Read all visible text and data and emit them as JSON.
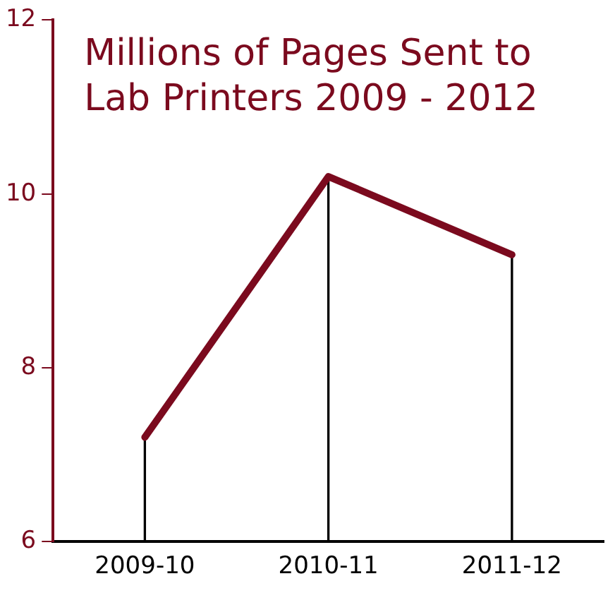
{
  "chart_data": {
    "type": "line",
    "title": "Millions of Pages Sent to Lab Printers 2009 - 2012",
    "categories": [
      "2009-10",
      "2010-11",
      "2011-12"
    ],
    "series": [
      {
        "color": "#7b0a1e",
        "values": [
          7.2,
          10.2,
          9.3
        ]
      },
      {
        "type": "bar",
        "color": "#000000",
        "values": [
          7.2,
          10.2,
          9.3
        ]
      }
    ],
    "ylim": [
      6,
      12
    ],
    "yticks": [
      6,
      8,
      10,
      12
    ],
    "grid": false,
    "legend": false,
    "marker": "none",
    "line_style": "solid"
  }
}
